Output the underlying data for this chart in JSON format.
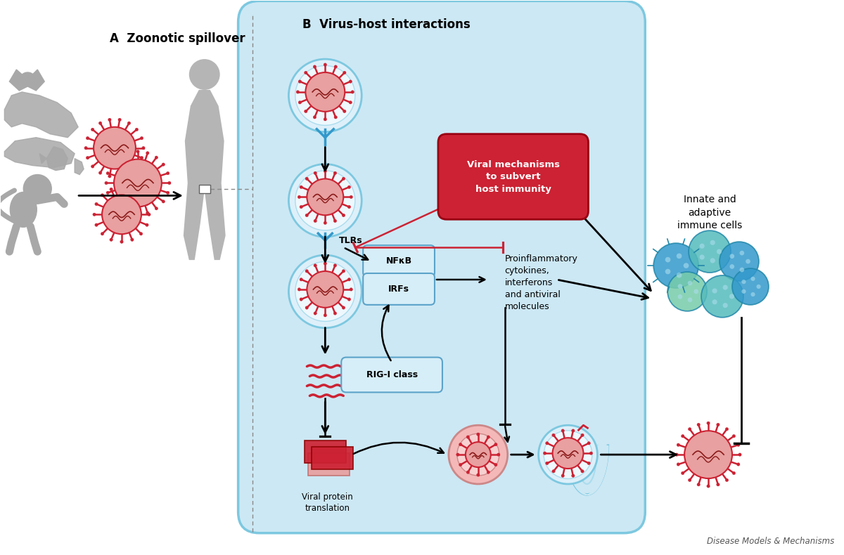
{
  "title_b": "B  Virus-host interactions",
  "title_a": "A  Zoonotic spillover",
  "bg_color": "#ffffff",
  "cell_bg": "#cce8f4",
  "cell_border": "#7dc8e0",
  "red_box_color": "#cc2233",
  "red_box_text": "Viral mechanisms\nto subvert\nhost immunity",
  "tlr_label": "TLRs",
  "nfkb_label": "NFκB",
  "irf_label": "IRFs",
  "rig_label": "RIG-I class",
  "cytokine_label": "Proinflammatory\ncytokines,\ninterferons\nand antiviral\nmolecules",
  "innate_label": "Innate and\nadaptive\nimmune cells",
  "viral_protein_label": "Viral protein\ntranslation",
  "footer": "Disease Models & Mechanisms",
  "virus_red": "#cc2233",
  "virus_pink": "#e8a0a0",
  "virus_dark": "#8b0000",
  "animal_color": "#a8a8a8"
}
